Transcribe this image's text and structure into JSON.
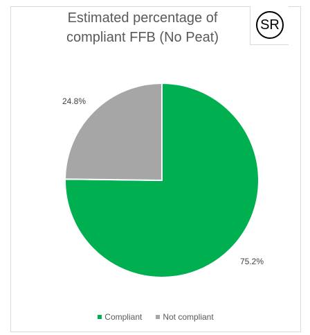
{
  "badge": {
    "text": "SR"
  },
  "chart_data": {
    "type": "pie",
    "title": "Estimated percentage of compliant FFB (No Peat)",
    "title_lines": [
      "Estimated percentage of",
      "compliant FFB (No Peat)"
    ],
    "categories": [
      "Compliant",
      "Not compliant"
    ],
    "values": [
      75.2,
      24.8
    ],
    "data_labels": [
      "75.2%",
      "24.8%"
    ],
    "colors": [
      "#00b050",
      "#a6a6a6"
    ],
    "legend": {
      "position": "bottom",
      "entries": [
        "Compliant",
        "Not compliant"
      ]
    }
  }
}
